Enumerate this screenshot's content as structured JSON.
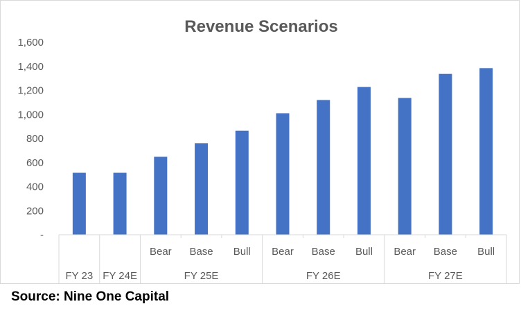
{
  "chart_data": {
    "type": "bar",
    "title": "Revenue Scenarios",
    "xlabel": "",
    "ylabel": "",
    "ylim": [
      0,
      1600
    ],
    "yticks": [
      0,
      200,
      400,
      600,
      800,
      1000,
      1200,
      1400,
      1600
    ],
    "ytick_labels": [
      "-",
      "200",
      "400",
      "600",
      "800",
      "1,000",
      "1,200",
      "1,400",
      "1,600"
    ],
    "grid": false,
    "legend": "none",
    "bar_color": "#4472c4",
    "categories": [
      {
        "label": "",
        "group": "FY 23"
      },
      {
        "label": "",
        "group": "FY 24E"
      },
      {
        "label": "Bear",
        "group": "FY 25E"
      },
      {
        "label": "Base",
        "group": "FY 25E"
      },
      {
        "label": "Bull",
        "group": "FY 25E"
      },
      {
        "label": "Bear",
        "group": "FY 26E"
      },
      {
        "label": "Base",
        "group": "FY 26E"
      },
      {
        "label": "Bull",
        "group": "FY 26E"
      },
      {
        "label": "Bear",
        "group": "FY 27E"
      },
      {
        "label": "Base",
        "group": "FY 27E"
      },
      {
        "label": "Bull",
        "group": "FY 27E"
      }
    ],
    "groups": [
      "FY 23",
      "FY 24E",
      "FY 25E",
      "FY 26E",
      "FY 27E"
    ],
    "values": [
      515,
      515,
      648,
      760,
      865,
      1010,
      1120,
      1228,
      1137,
      1337,
      1385
    ]
  },
  "footer": {
    "source": "Source: Nine One Capital"
  }
}
